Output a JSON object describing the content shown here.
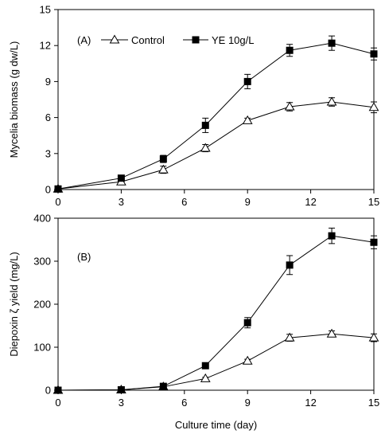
{
  "chart_data": [
    {
      "type": "line",
      "panel": "(A)",
      "ylabel": "Mycelia biomass (g dw/L)",
      "xlabel": "",
      "xlim": [
        0,
        15
      ],
      "ylim": [
        0,
        15
      ],
      "xticks": [
        0,
        3,
        6,
        9,
        12,
        15
      ],
      "yticks": [
        0,
        3,
        6,
        9,
        12,
        15
      ],
      "legend": "top-left",
      "grid": false,
      "x": [
        0,
        3,
        5,
        7,
        9,
        11,
        13,
        15
      ],
      "series": [
        {
          "name": "Control",
          "marker": "open-triangle",
          "values": [
            0.05,
            0.65,
            1.65,
            3.45,
            5.75,
            6.9,
            7.3,
            6.85
          ],
          "errors": [
            0.05,
            0.2,
            0.3,
            0.3,
            0.2,
            0.35,
            0.35,
            0.45
          ]
        },
        {
          "name": "YE 10g/L",
          "marker": "filled-square",
          "values": [
            0.05,
            0.95,
            2.55,
            5.35,
            9.0,
            11.6,
            12.2,
            11.3
          ],
          "errors": [
            0.05,
            0.2,
            0.3,
            0.6,
            0.6,
            0.5,
            0.6,
            0.5
          ]
        }
      ]
    },
    {
      "type": "line",
      "panel": "(B)",
      "ylabel": "Diepoxin ζ yield (mg/L)",
      "xlabel": "Culture time (day)",
      "xlim": [
        0,
        15
      ],
      "ylim": [
        0,
        400
      ],
      "xticks": [
        0,
        3,
        6,
        9,
        12,
        15
      ],
      "yticks": [
        0,
        100,
        200,
        300,
        400
      ],
      "grid": false,
      "x": [
        0,
        3,
        5,
        7,
        9,
        11,
        13,
        15
      ],
      "series": [
        {
          "name": "Control",
          "marker": "open-triangle",
          "values": [
            0,
            1,
            8,
            27,
            68,
            122,
            131,
            122
          ],
          "errors": [
            0,
            1,
            2,
            3,
            4,
            8,
            7,
            9
          ]
        },
        {
          "name": "YE 10g/L",
          "marker": "filled-square",
          "values": [
            0,
            1,
            9,
            57,
            157,
            291,
            359,
            344
          ],
          "errors": [
            0,
            1,
            2,
            6,
            12,
            22,
            18,
            15
          ]
        }
      ]
    }
  ]
}
